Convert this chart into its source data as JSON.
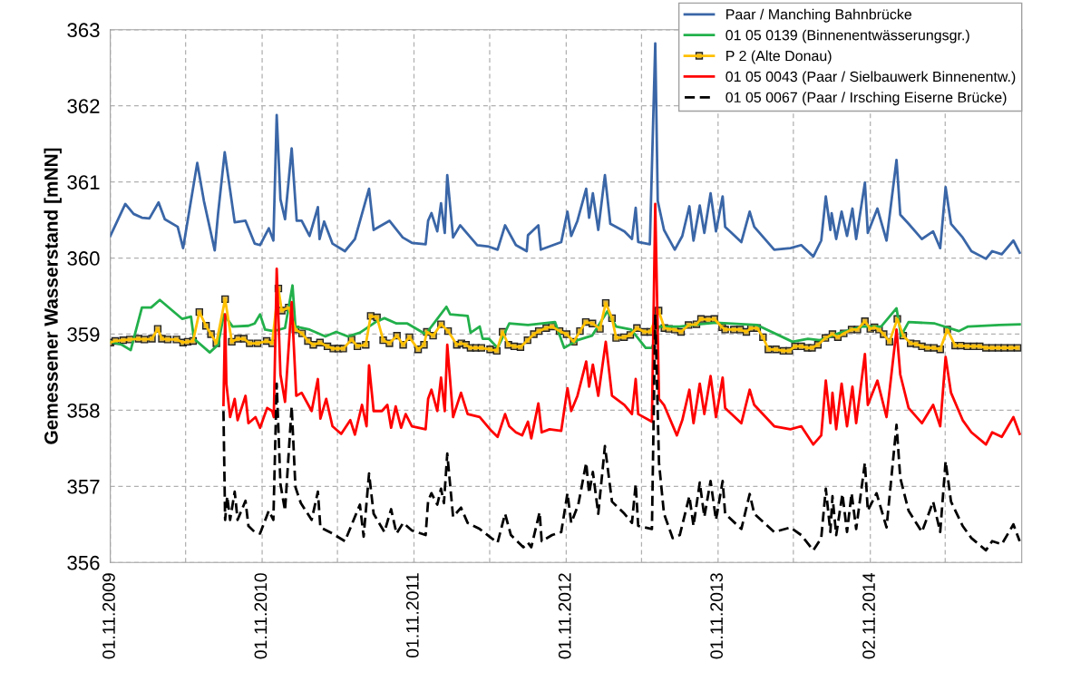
{
  "chart_data": {
    "type": "line",
    "ylabel": "Gemessener Wasserstand [mNN]",
    "xlim": [
      "2009-11-01",
      "2015-11-01"
    ],
    "ylim": [
      356,
      363
    ],
    "yticks": [
      356,
      357,
      358,
      359,
      360,
      361,
      362,
      363
    ],
    "xticks": [
      {
        "value": "2009-11-01",
        "label": "01.11.2009"
      },
      {
        "value": "2010-05-01",
        "label": null
      },
      {
        "value": "2010-11-01",
        "label": "01.11.2010"
      },
      {
        "value": "2011-05-01",
        "label": null
      },
      {
        "value": "2011-11-01",
        "label": "01.11.2011"
      },
      {
        "value": "2012-05-01",
        "label": null
      },
      {
        "value": "2012-11-01",
        "label": "01.11.2012"
      },
      {
        "value": "2013-05-01",
        "label": null
      },
      {
        "value": "2013-11-01",
        "label": "01.11.2013"
      },
      {
        "value": "2014-05-01",
        "label": null
      },
      {
        "value": "2014-11-02",
        "label": "02.11.2014"
      },
      {
        "value": "2015-05-01",
        "label": null
      }
    ],
    "grid": true,
    "legend": "top right",
    "series": [
      {
        "name": "Paar / Manching Bahnbrücke",
        "color": "#3a66a7",
        "line_style": "solid",
        "marker": "none",
        "x": [
          "2009-11-01",
          "2009-12-07",
          "2009-12-27",
          "2010-01-16",
          "2010-02-03",
          "2010-02-25",
          "2010-03-12",
          "2010-04-12",
          "2010-04-25",
          "2010-05-29",
          "2010-06-14",
          "2010-07-10",
          "2010-07-18",
          "2010-08-03",
          "2010-08-27",
          "2010-09-22",
          "2010-10-14",
          "2010-10-27",
          "2010-11-17",
          "2010-11-28",
          "2010-12-06",
          "2010-12-15",
          "2010-12-26",
          "2011-01-11",
          "2011-01-23",
          "2011-02-04",
          "2011-02-23",
          "2011-03-15",
          "2011-03-19",
          "2011-03-30",
          "2011-04-19",
          "2011-05-19",
          "2011-06-12",
          "2011-07-16",
          "2011-07-27",
          "2011-09-03",
          "2011-10-05",
          "2011-10-27",
          "2011-11-29",
          "2011-12-05",
          "2011-12-13",
          "2011-12-27",
          "2012-01-05",
          "2012-01-14",
          "2012-01-20",
          "2012-02-03",
          "2012-02-20",
          "2012-04-01",
          "2012-04-29",
          "2012-05-20",
          "2012-06-07",
          "2012-07-03",
          "2012-07-29",
          "2012-08-01",
          "2012-08-26",
          "2012-09-01",
          "2012-10-20",
          "2012-11-04",
          "2012-11-13",
          "2012-11-28",
          "2012-12-19",
          "2012-12-26",
          "2013-01-04",
          "2013-01-17",
          "2013-02-02",
          "2013-02-15",
          "2013-03-21",
          "2013-04-08",
          "2013-04-17",
          "2013-04-23",
          "2013-05-21",
          "2013-06-03",
          "2013-06-09",
          "2013-06-24",
          "2013-07-20",
          "2013-08-07",
          "2013-08-24",
          "2013-09-03",
          "2013-09-18",
          "2013-09-29",
          "2013-10-14",
          "2013-10-27",
          "2013-11-12",
          "2013-11-18",
          "2013-12-27",
          "2014-01-16",
          "2014-01-27",
          "2014-03-16",
          "2014-04-24",
          "2014-05-20",
          "2014-06-18",
          "2014-07-07",
          "2014-07-18",
          "2014-07-29",
          "2014-08-01",
          "2014-08-12",
          "2014-08-25",
          "2014-09-07",
          "2014-09-20",
          "2014-09-29",
          "2014-10-20",
          "2014-10-27",
          "2014-11-19",
          "2014-12-11",
          "2015-01-04",
          "2015-01-13",
          "2015-02-02",
          "2015-03-06",
          "2015-04-02",
          "2015-04-19",
          "2015-05-02",
          "2015-05-15",
          "2015-06-12",
          "2015-07-03",
          "2015-08-07",
          "2015-08-22",
          "2015-09-14",
          "2015-10-12",
          "2015-10-27"
        ],
        "values": [
          360.29,
          360.71,
          360.58,
          360.53,
          360.52,
          360.73,
          360.51,
          360.41,
          360.13,
          361.25,
          360.75,
          360.1,
          360.58,
          361.39,
          360.47,
          360.49,
          360.19,
          360.17,
          360.39,
          360.23,
          361.88,
          360.77,
          360.51,
          361.44,
          360.49,
          360.49,
          360.29,
          360.67,
          360.25,
          360.48,
          360.19,
          360.09,
          360.25,
          360.91,
          360.37,
          360.49,
          360.27,
          360.2,
          360.18,
          360.49,
          360.59,
          360.35,
          360.72,
          360.33,
          361.09,
          360.27,
          360.43,
          360.17,
          360.15,
          360.11,
          360.43,
          360.17,
          360.09,
          360.3,
          360.43,
          360.11,
          360.21,
          360.61,
          360.29,
          360.49,
          360.91,
          360.53,
          360.85,
          360.37,
          361.09,
          360.45,
          360.35,
          360.25,
          360.66,
          360.21,
          360.18,
          362.82,
          360.75,
          360.37,
          360.11,
          360.29,
          360.68,
          360.23,
          360.69,
          360.33,
          360.85,
          360.35,
          360.81,
          360.41,
          360.21,
          360.61,
          360.41,
          360.11,
          360.13,
          360.17,
          360.02,
          360.23,
          360.81,
          360.37,
          360.59,
          360.25,
          360.61,
          360.29,
          360.65,
          360.25,
          360.99,
          360.33,
          360.65,
          360.23,
          361.29,
          360.57,
          360.45,
          360.25,
          360.35,
          360.13,
          360.93,
          360.45,
          360.27,
          360.09,
          359.99,
          360.09,
          360.05,
          360.23,
          360.07
        ]
      },
      {
        "name": "01 05 0139 (Binnenentwässerungsgr.)",
        "color": "#22b04b",
        "line_style": "solid",
        "marker": "none",
        "x": [
          "2009-11-01",
          "2009-11-29",
          "2009-12-20",
          "2010-01-16",
          "2010-02-07",
          "2010-02-28",
          "2010-04-23",
          "2010-05-14",
          "2010-05-21",
          "2010-06-28",
          "2010-07-18",
          "2010-08-01",
          "2010-08-22",
          "2010-09-29",
          "2010-10-14",
          "2010-10-27",
          "2010-11-08",
          "2010-11-28",
          "2010-12-26",
          "2011-01-13",
          "2011-01-20",
          "2011-02-23",
          "2011-04-02",
          "2011-04-28",
          "2011-05-26",
          "2011-06-24",
          "2011-08-01",
          "2011-08-22",
          "2011-09-20",
          "2011-10-16",
          "2011-11-29",
          "2011-12-27",
          "2012-01-18",
          "2012-01-27",
          "2012-03-09",
          "2012-03-16",
          "2012-04-07",
          "2012-04-14",
          "2012-04-29",
          "2012-05-20",
          "2012-06-17",
          "2012-08-01",
          "2012-10-05",
          "2012-10-27",
          "2012-11-28",
          "2013-01-02",
          "2013-02-08",
          "2013-03-01",
          "2013-04-06",
          "2013-05-11",
          "2013-05-26",
          "2013-06-12",
          "2013-08-01",
          "2013-09-14",
          "2013-10-27",
          "2014-02-03",
          "2014-04-29",
          "2014-06-05",
          "2014-07-03",
          "2014-08-22",
          "2014-10-14",
          "2014-11-28",
          "2015-01-04",
          "2015-01-15",
          "2015-02-02",
          "2015-04-06",
          "2015-06-03",
          "2015-06-25",
          "2015-09-08",
          "2015-10-27"
        ],
        "values": [
          358.9,
          358.86,
          358.79,
          359.35,
          359.35,
          359.45,
          359.2,
          359.23,
          358.94,
          358.76,
          358.86,
          359.26,
          359.1,
          359.11,
          359.14,
          359.26,
          359.06,
          359.04,
          359.08,
          359.64,
          359.1,
          359.06,
          358.97,
          359.03,
          358.97,
          359.02,
          359.16,
          359.21,
          359.14,
          359.14,
          359.0,
          359.2,
          359.36,
          359.26,
          359.24,
          359.02,
          359.1,
          358.94,
          358.94,
          358.82,
          359.14,
          359.12,
          359.16,
          358.82,
          358.92,
          358.98,
          359.3,
          359.1,
          359.06,
          358.82,
          358.82,
          359.1,
          359.1,
          359.13,
          359.15,
          359.12,
          358.9,
          358.94,
          358.92,
          359.02,
          359.1,
          359.1,
          359.34,
          358.98,
          359.16,
          359.14,
          359.04,
          359.1,
          359.12,
          359.13
        ]
      },
      {
        "name": "P 2 (Alte Donau)",
        "color": "#ffc000",
        "line_style": "solid",
        "marker": "square",
        "x": [
          "2009-11-01",
          "2009-11-13",
          "2009-12-02",
          "2009-12-18",
          "2010-01-08",
          "2010-01-22",
          "2010-02-09",
          "2010-02-23",
          "2010-03-05",
          "2010-03-19",
          "2010-04-09",
          "2010-04-25",
          "2010-05-06",
          "2010-05-19",
          "2010-06-03",
          "2010-06-19",
          "2010-07-01",
          "2010-07-14",
          "2010-08-04",
          "2010-08-20",
          "2010-09-04",
          "2010-09-18",
          "2010-10-02",
          "2010-10-21",
          "2010-11-12",
          "2010-11-25",
          "2010-12-10",
          "2010-12-18",
          "2011-01-04",
          "2011-01-20",
          "2011-02-05",
          "2011-02-19",
          "2011-03-04",
          "2011-03-20",
          "2011-04-07",
          "2011-04-21",
          "2011-05-03",
          "2011-05-15",
          "2011-06-04",
          "2011-06-18",
          "2011-07-08",
          "2011-07-20",
          "2011-08-04",
          "2011-08-19",
          "2011-09-03",
          "2011-09-21",
          "2011-10-06",
          "2011-10-21",
          "2011-11-11",
          "2011-11-25",
          "2011-12-02",
          "2011-12-17",
          "2012-01-05",
          "2012-01-22",
          "2012-02-12",
          "2012-02-23",
          "2012-03-05",
          "2012-03-16",
          "2012-03-29",
          "2012-04-11",
          "2012-05-02",
          "2012-05-18",
          "2012-06-01",
          "2012-06-15",
          "2012-06-29",
          "2012-07-14",
          "2012-07-31",
          "2012-08-15",
          "2012-08-27",
          "2012-09-14",
          "2012-09-28",
          "2012-10-16",
          "2012-11-02",
          "2012-11-19",
          "2012-12-04",
          "2012-12-18",
          "2013-01-03",
          "2013-01-21",
          "2013-02-04",
          "2013-02-19",
          "2013-03-01",
          "2013-03-20",
          "2013-04-04",
          "2013-04-20",
          "2013-05-08",
          "2013-05-22",
          "2013-06-11",
          "2013-06-25",
          "2013-07-06",
          "2013-07-20",
          "2013-08-04",
          "2013-08-22",
          "2013-09-10",
          "2013-09-21",
          "2013-10-09",
          "2013-10-23",
          "2013-11-11",
          "2013-11-18",
          "2013-12-09",
          "2013-12-24",
          "2014-01-08",
          "2014-01-19",
          "2014-02-03",
          "2014-02-17",
          "2014-03-02",
          "2014-03-20",
          "2014-04-07",
          "2014-04-21",
          "2014-05-05",
          "2014-05-20",
          "2014-06-04",
          "2014-06-15",
          "2014-06-29",
          "2014-07-17",
          "2014-08-03",
          "2014-08-16",
          "2014-08-30",
          "2014-09-18",
          "2014-10-02",
          "2014-10-20",
          "2014-11-02",
          "2014-11-12",
          "2014-11-23",
          "2014-12-04",
          "2014-12-18",
          "2015-01-06",
          "2015-01-20",
          "2015-02-07",
          "2015-02-21",
          "2015-03-06",
          "2015-03-20",
          "2015-04-04",
          "2015-04-19",
          "2015-05-06",
          "2015-05-25",
          "2015-06-07",
          "2015-06-23",
          "2015-07-09",
          "2015-07-23",
          "2015-08-07",
          "2015-08-22",
          "2015-09-06",
          "2015-09-20",
          "2015-10-06",
          "2015-10-22"
        ],
        "values": [
          358.89,
          358.91,
          358.92,
          358.93,
          358.94,
          358.93,
          358.94,
          359.07,
          358.94,
          358.93,
          358.93,
          358.89,
          358.9,
          358.91,
          359.29,
          359.11,
          359.0,
          358.88,
          359.46,
          358.9,
          358.94,
          358.94,
          358.88,
          358.88,
          358.91,
          358.88,
          359.6,
          359.31,
          359.35,
          359.06,
          359.01,
          358.91,
          358.86,
          358.89,
          358.84,
          358.81,
          358.81,
          358.81,
          358.93,
          358.84,
          358.86,
          359.24,
          359.22,
          358.92,
          358.88,
          358.98,
          358.86,
          358.96,
          358.8,
          358.86,
          359.03,
          358.98,
          359.13,
          359.04,
          358.86,
          358.88,
          358.86,
          358.82,
          358.82,
          358.82,
          358.8,
          358.78,
          359.03,
          358.86,
          358.84,
          358.83,
          358.92,
          359.0,
          359.04,
          359.08,
          359.1,
          359.04,
          359.0,
          358.9,
          359.04,
          359.16,
          359.14,
          359.07,
          359.41,
          359.21,
          358.95,
          358.96,
          358.99,
          359.08,
          359.03,
          359.03,
          359.31,
          359.08,
          359.07,
          359.06,
          359.03,
          359.12,
          359.13,
          359.2,
          359.19,
          359.2,
          359.09,
          359.06,
          359.06,
          359.06,
          359.03,
          359.08,
          359.08,
          358.96,
          358.8,
          358.8,
          358.78,
          358.78,
          358.84,
          358.84,
          358.82,
          358.82,
          358.86,
          358.95,
          359.0,
          358.96,
          359.01,
          359.06,
          359.06,
          359.17,
          359.07,
          359.09,
          359.06,
          359.0,
          358.9,
          359.2,
          358.98,
          358.88,
          358.87,
          358.84,
          358.82,
          358.82,
          358.8,
          359.06,
          358.85,
          358.85,
          358.84,
          358.84,
          358.84,
          358.82,
          358.82,
          358.82,
          358.82,
          358.82,
          358.82
        ]
      },
      {
        "name": "01 05 0043 (Paar / Sielbauwerk Binnenentw.)",
        "color": "#ff0000",
        "line_style": "solid",
        "marker": "none",
        "x": [
          "2010-07-31",
          "2010-08-04",
          "2010-08-07",
          "2010-08-16",
          "2010-08-27",
          "2010-09-03",
          "2010-09-22",
          "2010-09-29",
          "2010-10-16",
          "2010-10-27",
          "2010-11-13",
          "2010-11-25",
          "2010-11-29",
          "2010-12-06",
          "2010-12-15",
          "2010-12-26",
          "2011-01-11",
          "2011-01-22",
          "2011-02-04",
          "2011-02-28",
          "2011-03-15",
          "2011-03-21",
          "2011-04-04",
          "2011-04-19",
          "2011-05-10",
          "2011-06-01",
          "2011-06-12",
          "2011-06-29",
          "2011-07-10",
          "2011-07-16",
          "2011-07-27",
          "2011-08-16",
          "2011-08-29",
          "2011-09-07",
          "2011-09-18",
          "2011-10-01",
          "2011-10-12",
          "2011-10-27",
          "2011-11-29",
          "2011-12-05",
          "2011-12-13",
          "2011-12-27",
          "2012-01-05",
          "2012-01-14",
          "2012-01-20",
          "2012-02-03",
          "2012-02-22",
          "2012-03-09",
          "2012-04-07",
          "2012-05-05",
          "2012-05-20",
          "2012-06-07",
          "2012-06-17",
          "2012-07-03",
          "2012-07-18",
          "2012-08-01",
          "2012-08-09",
          "2012-08-26",
          "2012-09-03",
          "2012-09-22",
          "2012-10-20",
          "2012-11-04",
          "2012-11-13",
          "2012-11-28",
          "2012-12-19",
          "2012-12-26",
          "2013-01-04",
          "2013-01-17",
          "2013-02-04",
          "2013-02-19",
          "2013-03-21",
          "2013-04-08",
          "2013-04-17",
          "2013-04-23",
          "2013-05-26",
          "2013-06-03",
          "2013-06-12",
          "2013-06-24",
          "2013-07-25",
          "2013-08-07",
          "2013-08-24",
          "2013-09-03",
          "2013-09-18",
          "2013-09-29",
          "2013-10-14",
          "2013-10-27",
          "2013-11-12",
          "2013-11-18",
          "2013-12-27",
          "2014-01-16",
          "2014-01-27",
          "2014-03-16",
          "2014-04-24",
          "2014-05-20",
          "2014-06-18",
          "2014-07-07",
          "2014-07-18",
          "2014-07-29",
          "2014-08-03",
          "2014-08-12",
          "2014-08-25",
          "2014-09-07",
          "2014-09-20",
          "2014-09-29",
          "2014-10-20",
          "2014-10-27",
          "2014-11-19",
          "2014-12-11",
          "2015-01-04",
          "2015-01-13",
          "2015-02-02",
          "2015-03-06",
          "2015-04-02",
          "2015-04-19",
          "2015-05-02",
          "2015-05-15",
          "2015-06-12",
          "2015-07-03",
          "2015-08-07",
          "2015-08-22",
          "2015-09-14",
          "2015-10-12",
          "2015-10-27"
        ],
        "values": [
          358.07,
          359.26,
          358.35,
          357.91,
          358.15,
          357.87,
          358.19,
          357.83,
          357.91,
          357.77,
          358.03,
          357.99,
          357.91,
          359.86,
          358.47,
          358.11,
          359.42,
          358.19,
          358.23,
          357.99,
          358.41,
          357.89,
          358.15,
          357.79,
          357.69,
          357.87,
          357.68,
          358.07,
          357.79,
          358.59,
          357.99,
          357.99,
          358.07,
          357.77,
          358.05,
          357.77,
          357.95,
          357.79,
          357.75,
          358.15,
          358.27,
          357.99,
          358.43,
          357.99,
          358.86,
          357.91,
          358.23,
          357.95,
          357.91,
          357.73,
          357.65,
          357.95,
          357.79,
          357.71,
          357.67,
          357.85,
          357.63,
          358.09,
          357.71,
          357.75,
          357.73,
          358.29,
          357.99,
          358.19,
          358.64,
          358.31,
          358.6,
          358.19,
          358.9,
          358.19,
          358.07,
          357.95,
          358.41,
          357.95,
          357.85,
          360.71,
          358.15,
          358.07,
          357.67,
          357.87,
          358.27,
          357.83,
          358.35,
          357.95,
          358.45,
          357.91,
          358.43,
          358.03,
          357.83,
          358.27,
          358.07,
          357.79,
          357.75,
          357.79,
          357.55,
          357.67,
          358.39,
          357.83,
          358.23,
          357.75,
          358.35,
          357.79,
          358.31,
          357.83,
          358.74,
          358.07,
          358.39,
          357.91,
          359.06,
          358.47,
          358.03,
          357.83,
          358.07,
          357.79,
          358.7,
          358.23,
          357.87,
          357.71,
          357.55,
          357.71,
          357.65,
          357.91,
          357.69
        ]
      },
      {
        "name": "01 05 0067 (Paar / Irsching Eiserne Brücke)",
        "color": "#000000",
        "line_style": "dashed",
        "marker": "none",
        "x": [
          "2010-07-31",
          "2010-08-04",
          "2010-08-09",
          "2010-08-16",
          "2010-08-27",
          "2010-09-03",
          "2010-09-22",
          "2010-09-29",
          "2010-10-14",
          "2010-10-27",
          "2010-11-17",
          "2010-11-28",
          "2010-12-06",
          "2010-12-15",
          "2010-12-26",
          "2011-01-11",
          "2011-01-20",
          "2011-02-02",
          "2011-02-28",
          "2011-03-15",
          "2011-03-21",
          "2011-04-19",
          "2011-05-19",
          "2011-06-24",
          "2011-07-03",
          "2011-07-16",
          "2011-07-27",
          "2011-08-22",
          "2011-09-07",
          "2011-09-20",
          "2011-10-06",
          "2011-10-27",
          "2011-11-29",
          "2011-12-05",
          "2011-12-13",
          "2011-12-27",
          "2012-01-05",
          "2012-01-12",
          "2012-01-20",
          "2012-02-03",
          "2012-02-22",
          "2012-03-09",
          "2012-04-07",
          "2012-05-05",
          "2012-05-20",
          "2012-06-07",
          "2012-06-21",
          "2012-07-21",
          "2012-08-01",
          "2012-08-09",
          "2012-08-29",
          "2012-09-03",
          "2012-09-28",
          "2012-10-20",
          "2012-11-04",
          "2012-11-13",
          "2012-11-30",
          "2012-12-19",
          "2012-12-26",
          "2013-01-04",
          "2013-01-17",
          "2013-02-02",
          "2013-02-19",
          "2013-03-21",
          "2013-04-08",
          "2013-04-17",
          "2013-04-23",
          "2013-05-26",
          "2013-06-03",
          "2013-06-12",
          "2013-06-24",
          "2013-07-15",
          "2013-08-01",
          "2013-08-24",
          "2013-09-03",
          "2013-09-18",
          "2013-09-29",
          "2013-10-14",
          "2013-10-27",
          "2013-11-12",
          "2013-11-18",
          "2013-12-27",
          "2014-01-16",
          "2014-01-27",
          "2014-03-16",
          "2014-04-24",
          "2014-05-20",
          "2014-06-18",
          "2014-07-07",
          "2014-07-18",
          "2014-07-29",
          "2014-08-03",
          "2014-08-12",
          "2014-08-27",
          "2014-09-07",
          "2014-09-18",
          "2014-09-29",
          "2014-10-20",
          "2014-10-27",
          "2014-11-17",
          "2014-12-11",
          "2015-01-04",
          "2015-01-13",
          "2015-02-02",
          "2015-03-06",
          "2015-04-02",
          "2015-04-19",
          "2015-05-02",
          "2015-05-15",
          "2015-06-12",
          "2015-07-03",
          "2015-08-07",
          "2015-08-22",
          "2015-09-14",
          "2015-10-12",
          "2015-10-27"
        ],
        "values": [
          357.99,
          356.56,
          356.87,
          356.56,
          356.93,
          356.56,
          356.81,
          356.48,
          356.4,
          356.38,
          356.68,
          356.56,
          358.35,
          357.03,
          356.68,
          358.05,
          356.99,
          356.78,
          356.56,
          356.93,
          356.46,
          356.38,
          356.28,
          356.76,
          356.34,
          357.17,
          356.64,
          356.4,
          356.7,
          356.38,
          356.52,
          356.42,
          356.36,
          356.81,
          356.91,
          356.76,
          356.97,
          356.78,
          357.43,
          356.6,
          356.72,
          356.52,
          356.44,
          356.32,
          356.26,
          356.64,
          356.36,
          356.2,
          356.26,
          356.2,
          356.66,
          356.28,
          356.36,
          356.4,
          356.91,
          356.52,
          356.76,
          357.31,
          356.91,
          357.19,
          356.64,
          357.53,
          356.8,
          356.64,
          356.52,
          357.03,
          356.48,
          356.44,
          359.26,
          357.31,
          356.64,
          356.32,
          356.36,
          356.87,
          356.48,
          357.05,
          356.6,
          357.07,
          356.56,
          357.07,
          356.64,
          356.44,
          356.9,
          356.64,
          356.4,
          356.46,
          356.36,
          356.16,
          356.32,
          356.97,
          356.4,
          356.87,
          356.36,
          356.9,
          356.4,
          356.91,
          356.44,
          357.31,
          356.68,
          356.91,
          356.46,
          357.81,
          357.11,
          356.68,
          356.4,
          356.8,
          356.4,
          357.33,
          356.8,
          356.48,
          356.32,
          356.16,
          356.28,
          356.24,
          356.5,
          356.28
        ]
      }
    ]
  }
}
